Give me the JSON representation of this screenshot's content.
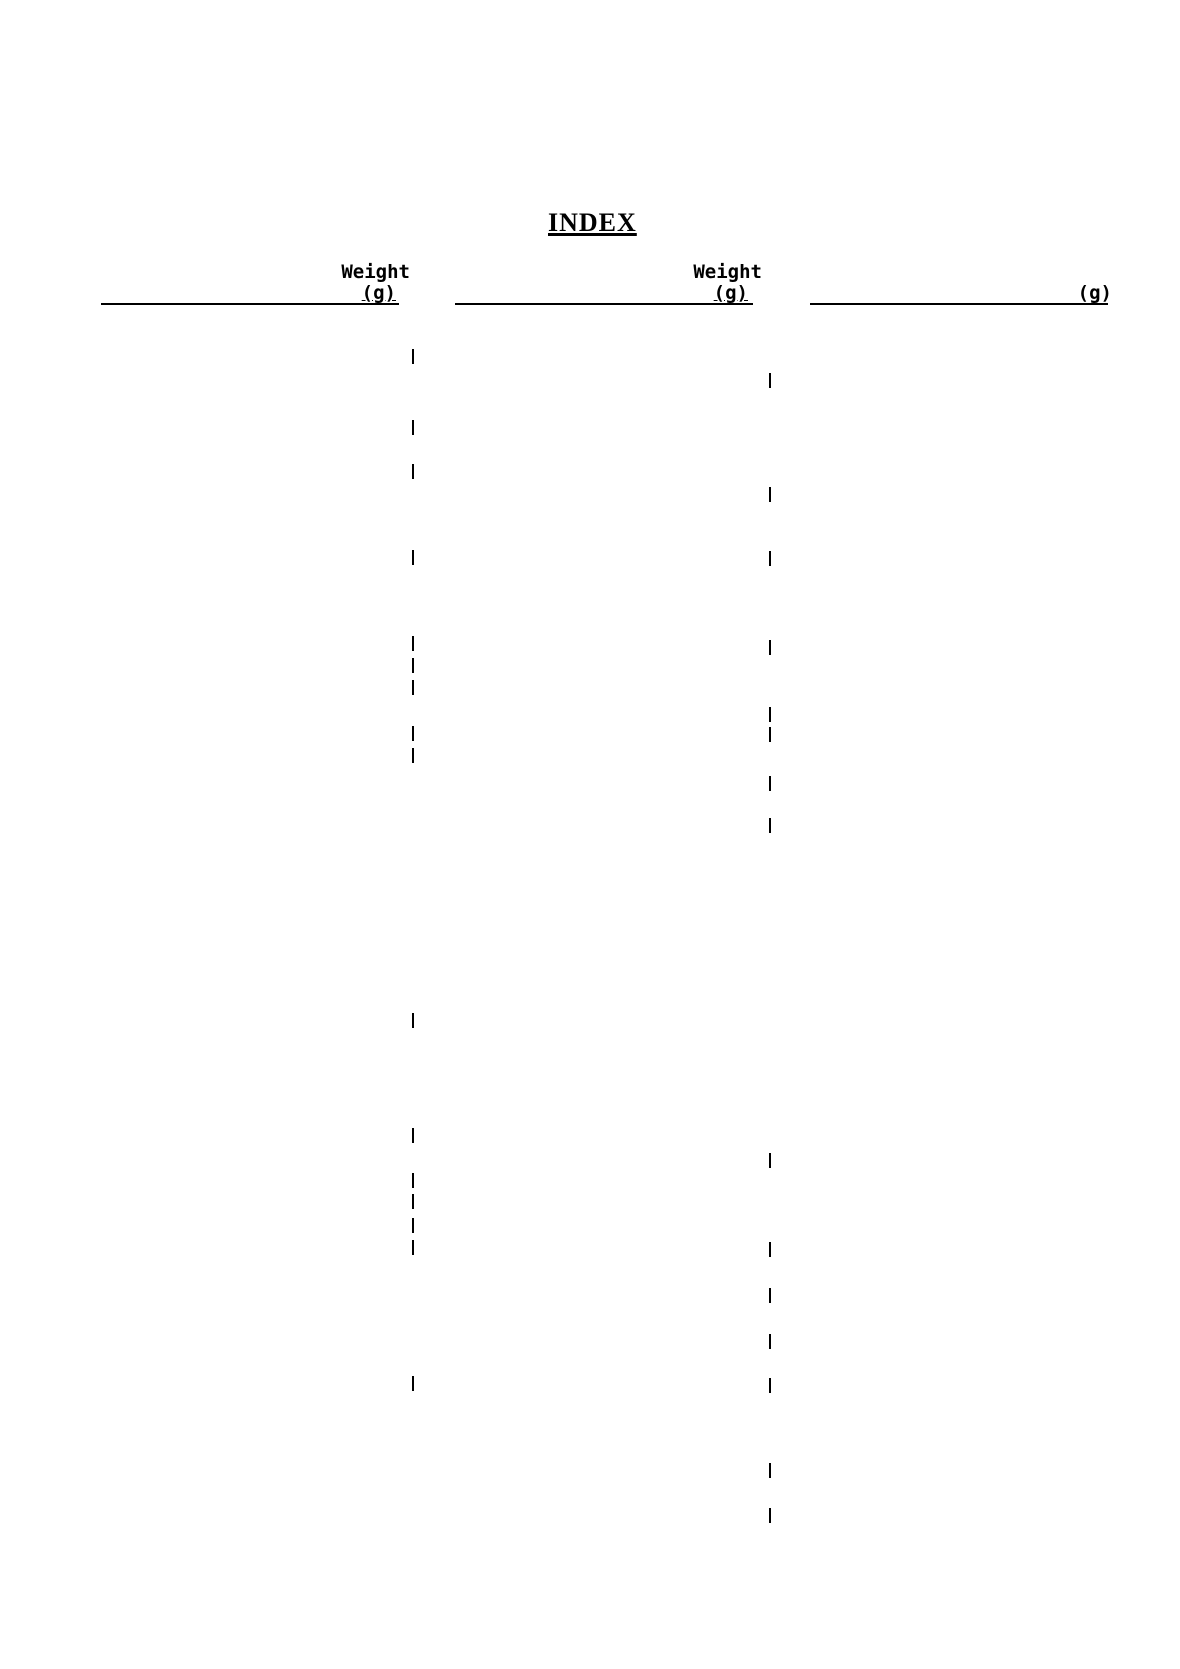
{
  "title": "INDEX",
  "columns": [
    {
      "heading": "Weight",
      "unit": "(g)"
    },
    {
      "heading": "Weight",
      "unit": "(g)"
    },
    {
      "heading": "",
      "unit": "(g)"
    }
  ]
}
